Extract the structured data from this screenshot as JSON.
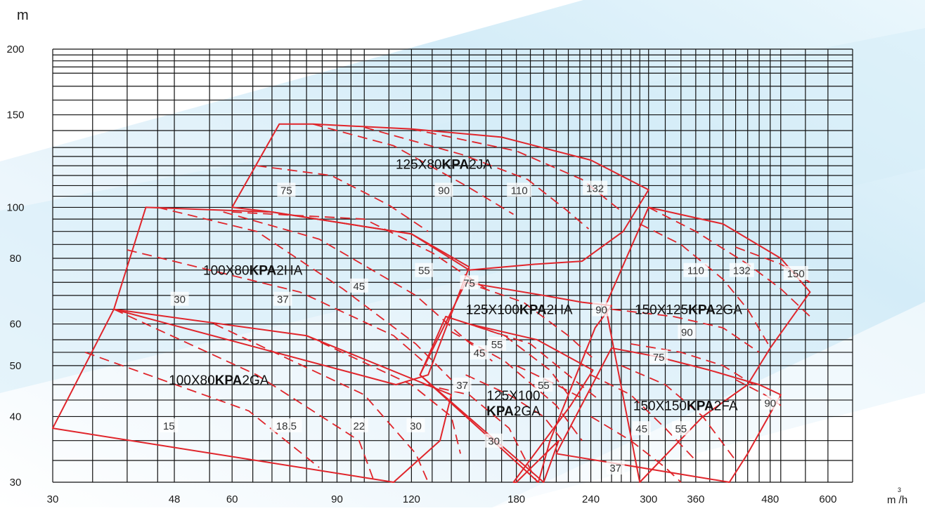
{
  "chart_data": {
    "type": "line",
    "title": "",
    "ylabel": "m",
    "xlabel": "m³/h",
    "x_scale": "log",
    "y_scale": "log",
    "xlim": [
      30,
      660
    ],
    "ylim": [
      30,
      200
    ],
    "x_ticks": [
      30,
      48,
      60,
      90,
      120,
      180,
      240,
      300,
      360,
      480,
      600
    ],
    "y_ticks": [
      30,
      40,
      50,
      60,
      80,
      100,
      150,
      200
    ],
    "x_gridlines": [
      30,
      35,
      40,
      45,
      48,
      55,
      60,
      65,
      70,
      75,
      80,
      85,
      90,
      95,
      100,
      110,
      120,
      130,
      140,
      150,
      160,
      170,
      180,
      190,
      200,
      210,
      220,
      230,
      240,
      250,
      260,
      270,
      280,
      290,
      300,
      320,
      340,
      360,
      380,
      400,
      420,
      440,
      460,
      480,
      500,
      550,
      600,
      660
    ],
    "y_gridlines": [
      30,
      33,
      36,
      40,
      43,
      46,
      50,
      53,
      56,
      60,
      64,
      68,
      72,
      76,
      80,
      85,
      90,
      95,
      100,
      105,
      110,
      115,
      120,
      125,
      130,
      140,
      150,
      160,
      170,
      180,
      185,
      190,
      195,
      200
    ],
    "series": [
      {
        "name": "100X80KPA2GA",
        "label": {
          "pre": "100X80",
          "bold": "KPA",
          "post": "2GA",
          "at": [
            57,
            47
          ]
        },
        "outline": [
          [
            30,
            38
          ],
          [
            38,
            64
          ],
          [
            80,
            57
          ],
          [
            140,
            44
          ],
          [
            134,
            36
          ],
          [
            112,
            30
          ]
        ],
        "power_curves": [
          {
            "pts": [
              [
                34,
                53
              ],
              [
                64,
                41
              ],
              [
                84,
                32
              ]
            ],
            "label": "15",
            "at": [
              47,
              38.5
            ]
          },
          {
            "pts": [
              [
                38,
                64
              ],
              [
                66,
                48
              ],
              [
                98,
                36
              ],
              [
                104,
                30
              ]
            ],
            "label": "18.5",
            "at": [
              74,
              38.5
            ]
          },
          {
            "pts": [
              [
                56,
                60
              ],
              [
                100,
                44
              ],
              [
                122,
                34
              ],
              [
                128,
                30
              ]
            ],
            "label": "22",
            "at": [
              98,
              38.5
            ]
          },
          {
            "pts": [
              [
                80,
                57
              ],
              [
                120,
                46
              ],
              [
                140,
                40
              ],
              [
                145,
                34
              ]
            ],
            "label": "30",
            "at": [
              122,
              38.5
            ]
          }
        ]
      },
      {
        "name": "100X80KPA2HA",
        "label": {
          "pre": "100X80",
          "bold": "KPA",
          "post": "2HA",
          "at": [
            65,
            76
          ]
        },
        "outline": [
          [
            38,
            64
          ],
          [
            43,
            100
          ],
          [
            70,
            98
          ],
          [
            120,
            89
          ],
          [
            150,
            77
          ],
          [
            128,
            48
          ],
          [
            113,
            46
          ]
        ],
        "power_curves": [
          {
            "pts": [
              [
                40,
                83
              ],
              [
                78,
                69
              ],
              [
                112,
                57
              ],
              [
                128,
                50
              ]
            ],
            "label": "30",
            "at": [
              49,
              67
            ]
          },
          {
            "pts": [
              [
                45,
                100
              ],
              [
                66,
                90
              ],
              [
                92,
                70
              ],
              [
                122,
                55
              ],
              [
                140,
                47
              ]
            ],
            "label": "37",
            "at": [
              73,
              67
            ]
          },
          {
            "pts": [
              [
                58,
                98
              ],
              [
                84,
                87
              ],
              [
                122,
                68
              ],
              [
                148,
                56
              ],
              [
                164,
                51
              ]
            ],
            "label": "45",
            "at": [
              98,
              71
            ]
          },
          {
            "pts": [
              [
                60,
                98
              ],
              [
                100,
                95
              ],
              [
                130,
                82
              ],
              [
                160,
                70
              ]
            ],
            "label": "55",
            "at": [
              126,
              76
            ]
          }
        ]
      },
      {
        "name": "125X80KPA2JA",
        "label": {
          "pre": "125X80",
          "bold": "KPA",
          "post": "2JA",
          "at": [
            136,
            121
          ]
        },
        "outline": [
          [
            60,
            100
          ],
          [
            72,
            144
          ],
          [
            82,
            144
          ],
          [
            120,
            141
          ],
          [
            170,
            136
          ],
          [
            240,
            123
          ],
          [
            300,
            108
          ],
          [
            272,
            90
          ],
          [
            232,
            79
          ],
          [
            195,
            78
          ],
          [
            150,
            76
          ],
          [
            120,
            89
          ],
          [
            70,
            98
          ]
        ],
        "power_curves": [
          {
            "pts": [
              [
                66,
                120
              ],
              [
                88,
                115
              ],
              [
                110,
                101
              ],
              [
                128,
                90
              ]
            ],
            "label": "75",
            "at": [
              74,
              108
            ]
          },
          {
            "pts": [
              [
                82,
                144
              ],
              [
                112,
                131
              ],
              [
                148,
                110
              ],
              [
                178,
                97
              ]
            ],
            "label": "90",
            "at": [
              136,
              108
            ]
          },
          {
            "pts": [
              [
                100,
                142
              ],
              [
                146,
                126
              ],
              [
                188,
                113
              ],
              [
                218,
                99
              ],
              [
                238,
                91
              ]
            ],
            "label": "110",
            "at": [
              182,
              108
            ]
          },
          {
            "pts": [
              [
                120,
                141
              ],
              [
                180,
                128
              ],
              [
                232,
                113
              ],
              [
                268,
                99
              ]
            ],
            "label": "132",
            "at": [
              244,
              109
            ]
          }
        ]
      },
      {
        "name": "125X100KPA2HA",
        "label": {
          "pre": "125X100",
          "bold": "KPA",
          "post": "2HA",
          "at": [
            182,
            64
          ]
        },
        "outline": [
          [
            124,
            48
          ],
          [
            148,
            72
          ],
          [
            200,
            68
          ],
          [
            232,
            66
          ],
          [
            260,
            65
          ],
          [
            244,
            59
          ],
          [
            205,
            36
          ],
          [
            196,
            30
          ]
        ],
        "power_curves": [
          {
            "pts": [
              [
                137,
                62
              ],
              [
                172,
                57
              ],
              [
                205,
                49
              ],
              [
                220,
                44
              ]
            ],
            "label": "75",
            "at": [
              150,
              72
            ]
          },
          {
            "pts": [
              [
                148,
                72
              ],
              [
                185,
                66
              ],
              [
                220,
                57
              ],
              [
                245,
                51
              ]
            ],
            "label": "90",
            "at": [
              250,
              64
            ]
          }
        ]
      },
      {
        "name": "125X100KPA2GA",
        "label": {
          "pre": "125X100",
          "bold": "KPA",
          "post": "2GA",
          "lines": 2,
          "at": [
            178,
            43
          ]
        },
        "outline": [
          [
            124,
            48
          ],
          [
            137,
            62
          ],
          [
            150,
            60
          ],
          [
            195,
            56
          ],
          [
            242,
            49
          ],
          [
            222,
            42
          ],
          [
            178,
            30
          ],
          [
            180,
            30
          ],
          [
            212,
            36
          ],
          [
            200,
            30
          ]
        ],
        "power_curves": [
          {
            "pts": [
              [
                126,
                46
              ],
              [
                150,
                44
              ],
              [
                175,
                38
              ],
              [
                195,
                30
              ]
            ],
            "label": "37",
            "at": [
              146,
              46
            ]
          },
          {
            "pts": [
              [
                140,
                58
              ],
              [
                172,
                51
              ],
              [
                210,
                42
              ],
              [
                232,
                36
              ]
            ],
            "label": "45",
            "at": [
              156,
              53
            ]
          },
          {
            "pts": [
              [
                150,
                60
              ],
              [
                190,
                55
              ],
              [
                225,
                47
              ],
              [
                248,
                43
              ]
            ],
            "label": "55",
            "at": [
              167,
              55
            ]
          },
          {
            "pts": [
              [
                148,
                48
              ],
              [
                175,
                44
              ],
              [
                200,
                40
              ],
              [
                215,
                36
              ]
            ],
            "label": "30",
            "at": [
              165,
              36
            ]
          },
          {
            "pts": [
              [
                180,
                50
              ],
              [
                210,
                46
              ],
              [
                235,
                43
              ]
            ],
            "label": "55",
            "at": [
              200,
              46
            ]
          }
        ]
      },
      {
        "name": "150X125KPA2GA",
        "label": {
          "pre": "150X125",
          "bold": "KPA",
          "post": "2GA",
          "at": [
            350,
            64
          ]
        },
        "outline": [
          [
            254,
            65
          ],
          [
            300,
            100
          ],
          [
            400,
            93
          ],
          [
            500,
            80
          ],
          [
            560,
            69
          ],
          [
            480,
            54
          ],
          [
            440,
            46
          ],
          [
            370,
            40
          ],
          [
            290,
            30
          ]
        ],
        "power_curves": [
          {
            "pts": [
              [
                290,
                93
              ],
              [
                340,
                85
              ],
              [
                400,
                73
              ],
              [
                440,
                64
              ],
              [
                476,
                55
              ]
            ],
            "label": "110",
            "at": [
              360,
              76
            ]
          },
          {
            "pts": [
              [
                300,
                100
              ],
              [
                360,
                90
              ],
              [
                440,
                78
              ],
              [
                500,
                70
              ],
              [
                560,
                62
              ]
            ],
            "label": "132",
            "at": [
              430,
              76
            ]
          },
          {
            "pts": [
              [
                260,
                64
              ],
              [
                330,
                62
              ],
              [
                400,
                59
              ],
              [
                460,
                53
              ]
            ],
            "label": "90",
            "at": [
              348,
              58
            ]
          },
          {
            "pts": [
              [
                280,
                55
              ],
              [
                340,
                53
              ],
              [
                400,
                50
              ],
              [
                450,
                46
              ]
            ],
            "label": "75",
            "at": [
              312,
              52
            ]
          },
          {
            "pts": [
              [
                420,
                84
              ],
              [
                500,
                78
              ],
              [
                560,
                72
              ]
            ],
            "label": "150",
            "at": [
              530,
              75
            ]
          }
        ]
      },
      {
        "name": "150X150KPA2FA",
        "label": {
          "pre": "150X150",
          "bold": "KPA",
          "post": "2FA",
          "at": [
            346,
            42
          ]
        },
        "outline": [
          [
            210,
            34
          ],
          [
            260,
            54
          ],
          [
            310,
            52
          ],
          [
            380,
            49
          ],
          [
            460,
            46
          ],
          [
            500,
            44
          ],
          [
            440,
            34
          ],
          [
            410,
            30
          ]
        ],
        "power_curves": [
          {
            "pts": [
              [
                240,
                48
              ],
              [
                280,
                44
              ],
              [
                320,
                38
              ],
              [
                360,
                33
              ]
            ],
            "label": "45",
            "at": [
              292,
              38
            ]
          },
          {
            "pts": [
              [
                270,
                50
              ],
              [
                320,
                46
              ],
              [
                370,
                40
              ],
              [
                420,
                33
              ]
            ],
            "label": "55",
            "at": [
              340,
              38
            ]
          },
          {
            "pts": [
              [
                240,
                40
              ],
              [
                280,
                36
              ],
              [
                320,
                32
              ],
              [
                340,
                30
              ]
            ],
            "label": "37",
            "at": [
              264,
              32
            ]
          },
          {
            "pts": [
              [
                420,
                47
              ],
              [
                470,
                44
              ],
              [
                500,
                42
              ]
            ],
            "label": "90",
            "at": [
              480,
              42.5
            ]
          }
        ]
      }
    ]
  }
}
